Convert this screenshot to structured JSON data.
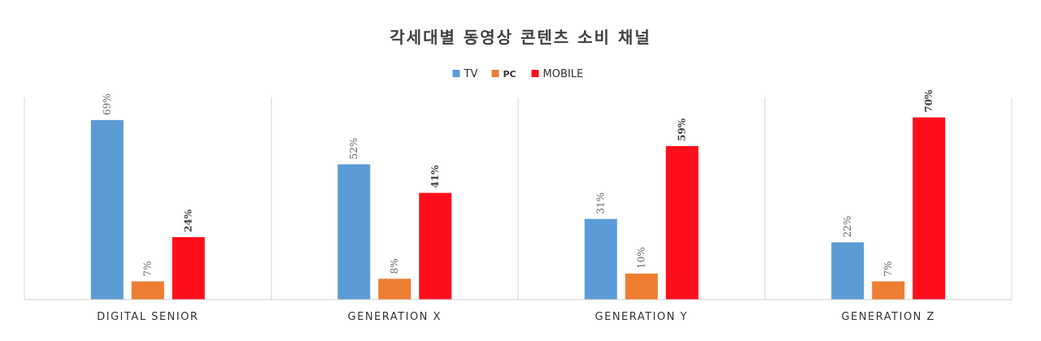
{
  "chart_data": {
    "type": "bar",
    "title": "각세대별 동영상 콘텐츠 소비 채널",
    "categories": [
      "DIGITAL SENIOR",
      "GENERATION X",
      "GENERATION Y",
      "GENERATION Z"
    ],
    "series": [
      {
        "name": "TV",
        "color": "#5b9bd5",
        "values": [
          69,
          52,
          31,
          22
        ],
        "labels": [
          "69%",
          "52%",
          "31%",
          "22%"
        ]
      },
      {
        "name": "PC",
        "color": "#ed7d31",
        "values": [
          7,
          8,
          10,
          7
        ],
        "labels": [
          "7%",
          "8%",
          "10%",
          "7%"
        ]
      },
      {
        "name": "MOBILE",
        "color": "#ff0d1a",
        "values": [
          24,
          41,
          59,
          70
        ],
        "labels": [
          "24%",
          "41%",
          "59%",
          "70%"
        ]
      }
    ],
    "ylim": [
      0,
      78
    ],
    "legend_position": "top-center",
    "grid": false
  }
}
